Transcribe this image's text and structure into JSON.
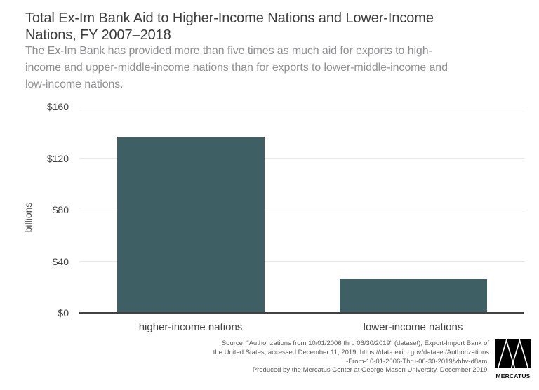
{
  "header": {
    "title": "Total Ex-Im Bank Aid to Higher-Income Nations and Lower-Income Nations, FY 2007–2018",
    "title_lines": [
      "Total Ex-Im Bank Aid to Higher-Income Nations and Lower-Income",
      "Nations, FY 2007–2018"
    ],
    "subtitle_lines": [
      "The Ex-Im Bank has provided more than five times as much aid for exports to high-",
      "income and upper-middle-income nations than for exports to lower-middle-income and",
      "low-income nations."
    ]
  },
  "chart_data": {
    "type": "bar",
    "title": "Total Ex-Im Bank Aid to Higher-Income Nations and Lower-Income Nations, FY 2007–2018",
    "subtitle": "The Ex-Im Bank has provided more than five times as much aid for exports to high-income and upper-middle-income nations than for exports to lower-middle-income and low-income nations.",
    "categories": [
      "higher-income nations",
      "lower-income nations"
    ],
    "values": [
      136,
      26
    ],
    "xlabel": "",
    "ylabel": "billions",
    "ylim": [
      0,
      160
    ],
    "yticks": [
      {
        "value": 0,
        "label": "$0"
      },
      {
        "value": 40,
        "label": "$40"
      },
      {
        "value": 80,
        "label": "$80"
      },
      {
        "value": 120,
        "label": "$120"
      },
      {
        "value": 160,
        "label": "$160"
      }
    ],
    "grid": true,
    "legend": "none",
    "bar_color": "#3e5f64"
  },
  "footer": {
    "source_lines": [
      "Source: \"Authorizations from 10/01/2006 thru 06/30/2019\" (dataset), Export-Import Bank of",
      "the United States, accessed December 11, 2019, https://data.exim.gov/dataset/Authorizations",
      "-From-10-01-2006-Thru-06-30-2019/vbhv-d8am.",
      "Produced by the Mercatus Center at George Mason University, December 2019."
    ],
    "logo_text": "MERCATUS"
  },
  "colors": {
    "bar": "#3e5f64",
    "axis": "#414141",
    "gridline": "#e8e8e8",
    "title_text": "#3d3d3d",
    "subtitle_text": "#8e9092",
    "footer_text": "#58595b"
  }
}
